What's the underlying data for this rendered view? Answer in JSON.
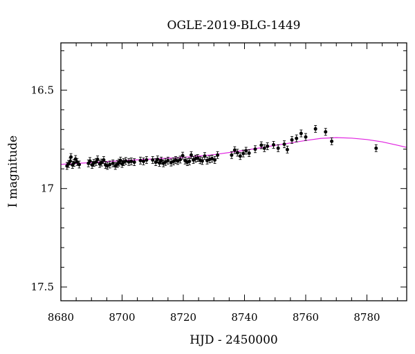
{
  "chart_data": {
    "type": "scatter",
    "title": "OGLE-2019-BLG-1449",
    "xlabel": "HJD - 2450000",
    "ylabel": "I magnitude",
    "xlim": [
      8680,
      8793
    ],
    "ylim": [
      17.57,
      16.26
    ],
    "y_inverted": true,
    "x_ticks": [
      "8680",
      "8700",
      "8720",
      "8740",
      "8760",
      "8780"
    ],
    "y_ticks": [
      "16.5",
      "17",
      "17.5"
    ],
    "grid": false,
    "colors": {
      "points": "#000000",
      "model": "#e020e0",
      "frame": "#000000"
    },
    "series": [
      {
        "kind": "points",
        "points": [
          [
            8682.0,
            16.885
          ],
          [
            8682.5,
            16.875
          ],
          [
            8683.0,
            16.862
          ],
          [
            8683.3,
            16.84
          ],
          [
            8683.8,
            16.88
          ],
          [
            8684.3,
            16.87
          ],
          [
            8684.8,
            16.85
          ],
          [
            8685.3,
            16.865
          ],
          [
            8686.0,
            16.878
          ],
          [
            8689.0,
            16.872
          ],
          [
            8689.5,
            16.86
          ],
          [
            8690.2,
            16.88
          ],
          [
            8690.8,
            16.87
          ],
          [
            8691.5,
            16.865
          ],
          [
            8692.0,
            16.852
          ],
          [
            8692.7,
            16.875
          ],
          [
            8693.3,
            16.868
          ],
          [
            8694.0,
            16.855
          ],
          [
            8694.6,
            16.88
          ],
          [
            8695.2,
            16.885
          ],
          [
            8696.0,
            16.878
          ],
          [
            8697.0,
            16.872
          ],
          [
            8697.8,
            16.885
          ],
          [
            8698.5,
            16.875
          ],
          [
            8699.0,
            16.868
          ],
          [
            8699.5,
            16.858
          ],
          [
            8700.0,
            16.875
          ],
          [
            8700.5,
            16.866
          ],
          [
            8701.2,
            16.86
          ],
          [
            8702.2,
            16.865
          ],
          [
            8703.0,
            16.862
          ],
          [
            8704.0,
            16.866
          ],
          [
            8706.0,
            16.858
          ],
          [
            8707.0,
            16.862
          ],
          [
            8708.0,
            16.855
          ],
          [
            8710.0,
            16.855
          ],
          [
            8711.0,
            16.866
          ],
          [
            8711.6,
            16.852
          ],
          [
            8712.2,
            16.87
          ],
          [
            8712.8,
            16.858
          ],
          [
            8713.5,
            16.872
          ],
          [
            8714.2,
            16.865
          ],
          [
            8715.0,
            16.858
          ],
          [
            8716.0,
            16.868
          ],
          [
            8716.8,
            16.862
          ],
          [
            8717.5,
            16.855
          ],
          [
            8718.2,
            16.86
          ],
          [
            8719.0,
            16.853
          ],
          [
            8719.8,
            16.833
          ],
          [
            8720.6,
            16.858
          ],
          [
            8721.3,
            16.866
          ],
          [
            8722.0,
            16.862
          ],
          [
            8722.6,
            16.83
          ],
          [
            8723.3,
            16.855
          ],
          [
            8724.0,
            16.848
          ],
          [
            8724.7,
            16.845
          ],
          [
            8725.5,
            16.856
          ],
          [
            8726.2,
            16.86
          ],
          [
            8727.0,
            16.835
          ],
          [
            8727.8,
            16.858
          ],
          [
            8728.6,
            16.852
          ],
          [
            8729.4,
            16.848
          ],
          [
            8730.3,
            16.855
          ],
          [
            8731.2,
            16.83
          ],
          [
            8735.8,
            16.83
          ],
          [
            8736.8,
            16.805
          ],
          [
            8737.7,
            16.818
          ],
          [
            8738.6,
            16.835
          ],
          [
            8739.6,
            16.822
          ],
          [
            8740.5,
            16.808
          ],
          [
            8741.5,
            16.82
          ],
          [
            8743.5,
            16.8
          ],
          [
            8745.5,
            16.78
          ],
          [
            8746.5,
            16.795
          ],
          [
            8747.5,
            16.785
          ],
          [
            8749.5,
            16.778
          ],
          [
            8751.0,
            16.795
          ],
          [
            8753.0,
            16.775
          ],
          [
            8754.0,
            16.802
          ],
          [
            8755.5,
            16.753
          ],
          [
            8757.0,
            16.745
          ],
          [
            8758.5,
            16.72
          ],
          [
            8760.0,
            16.738
          ],
          [
            8763.2,
            16.697
          ],
          [
            8766.5,
            16.712
          ],
          [
            8768.5,
            16.76
          ],
          [
            8783.0,
            16.795
          ]
        ]
      },
      {
        "kind": "model",
        "points": [
          [
            8680.0,
            16.877
          ],
          [
            8690.0,
            16.868
          ],
          [
            8700.0,
            16.858
          ],
          [
            8710.0,
            16.85
          ],
          [
            8720.0,
            16.842
          ],
          [
            8730.0,
            16.828
          ],
          [
            8740.0,
            16.806
          ],
          [
            8750.0,
            16.781
          ],
          [
            8760.0,
            16.756
          ],
          [
            8765.0,
            16.745
          ],
          [
            8770.0,
            16.741
          ],
          [
            8775.0,
            16.744
          ],
          [
            8780.0,
            16.751
          ],
          [
            8785.0,
            16.763
          ],
          [
            8790.0,
            16.78
          ],
          [
            8793.0,
            16.791
          ]
        ]
      }
    ]
  }
}
